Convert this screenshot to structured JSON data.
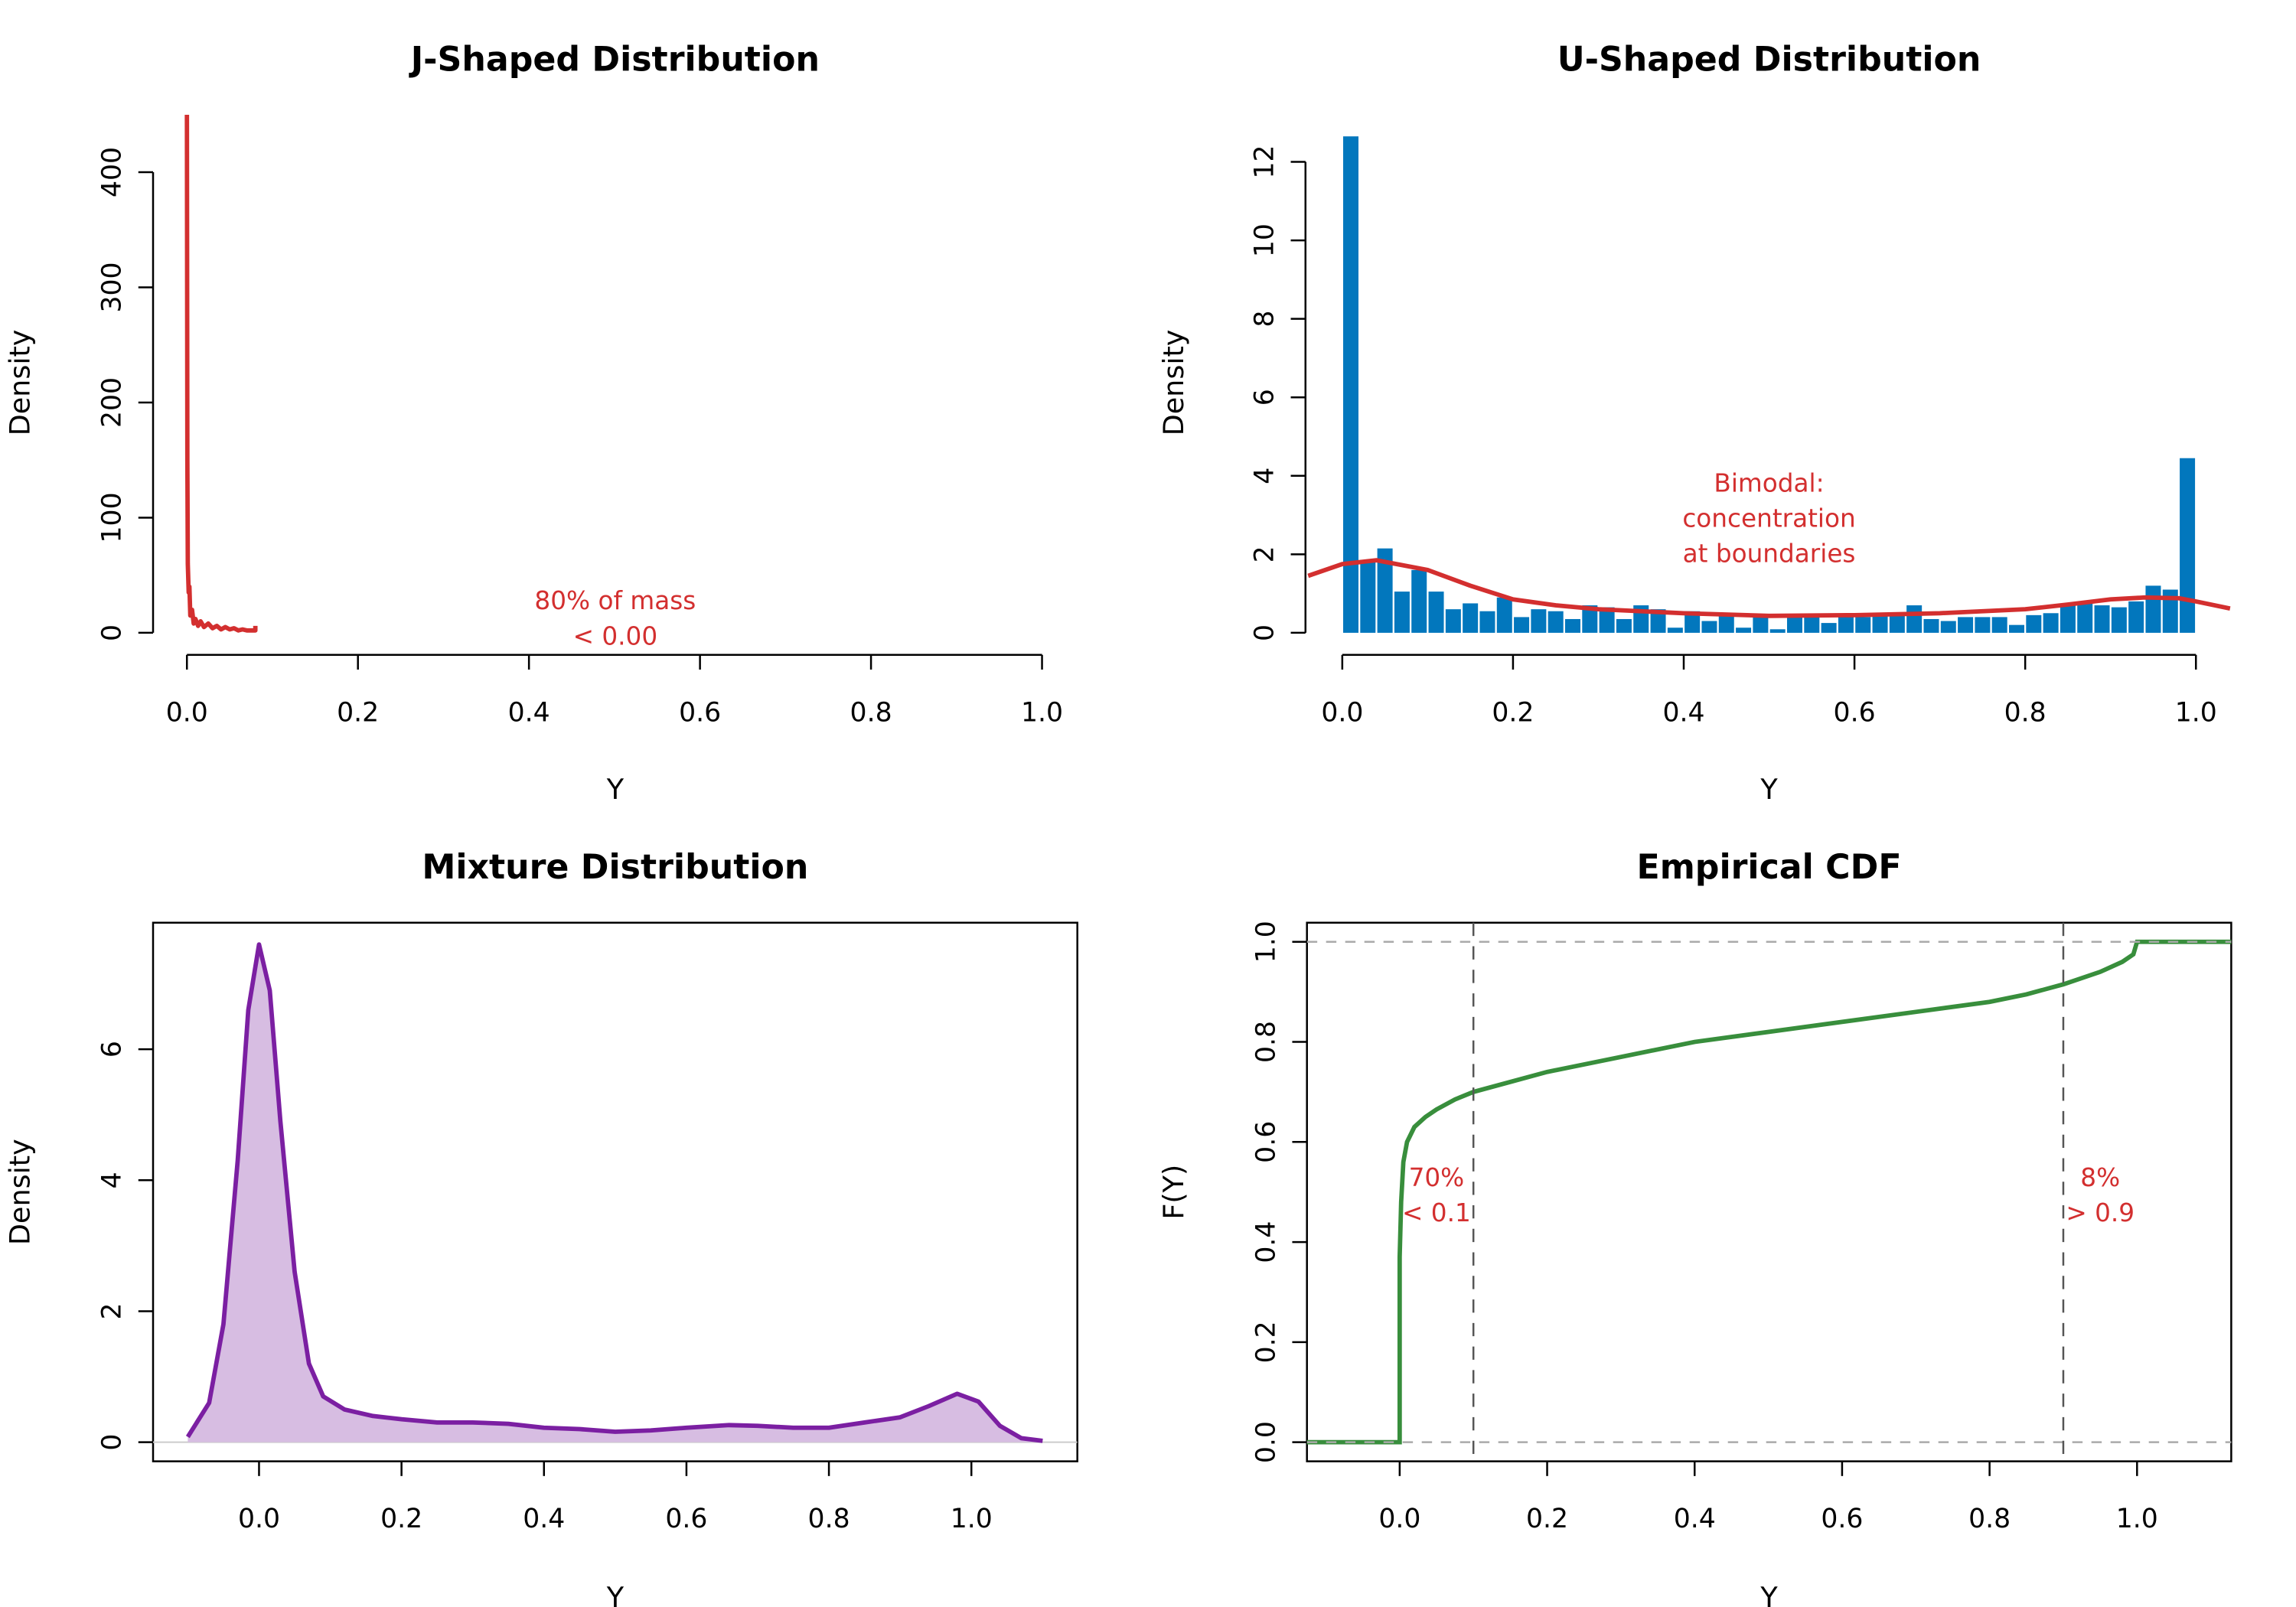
{
  "chart_data": [
    {
      "type": "line",
      "title": "J-Shaped Distribution",
      "xlabel": "Y",
      "ylabel": "Density",
      "xlim": [
        0,
        1
      ],
      "ylim": [
        0,
        450
      ],
      "xticks": [
        "0.0",
        "0.2",
        "0.4",
        "0.6",
        "0.8",
        "1.0"
      ],
      "yticks": [
        "0",
        "100",
        "200",
        "300",
        "400"
      ],
      "grid": false,
      "color": "#d32f2f",
      "series": [
        {
          "x": [
            0,
            0.0005,
            0.001,
            0.002,
            0.003,
            0.004,
            0.006,
            0.008,
            0.01,
            0.013,
            0.016,
            0.02,
            0.025,
            0.03,
            0.035,
            0.04,
            0.045,
            0.05,
            0.055,
            0.06,
            0.065,
            0.07,
            0.075,
            0.08,
            0.08
          ],
          "y": [
            450,
            150,
            60,
            35,
            40,
            15,
            20,
            8,
            12,
            6,
            10,
            5,
            8,
            4,
            6,
            3,
            5,
            3,
            4,
            2,
            3,
            2,
            2,
            2,
            6
          ]
        }
      ],
      "annotations": [
        "80% of mass",
        "< 0.00"
      ]
    },
    {
      "type": "bar",
      "title": "U-Shaped Distribution",
      "xlabel": "Y",
      "ylabel": "Density",
      "xlim": [
        -0.04,
        1.04
      ],
      "ylim": [
        0,
        12.8
      ],
      "xticks": [
        "0.0",
        "0.2",
        "0.4",
        "0.6",
        "0.8",
        "1.0"
      ],
      "yticks": [
        "0",
        "2",
        "4",
        "6",
        "8",
        "10",
        "12"
      ],
      "grid": false,
      "bar_color": "#0277bd",
      "curve_color": "#d32f2f",
      "bin_width": 0.02,
      "bin_start": 0,
      "values": [
        12.65,
        1.8,
        2.15,
        1.05,
        1.6,
        1.05,
        0.6,
        0.75,
        0.55,
        0.9,
        0.4,
        0.6,
        0.55,
        0.35,
        0.7,
        0.65,
        0.35,
        0.7,
        0.6,
        0.13,
        0.55,
        0.3,
        0.45,
        0.13,
        0.4,
        0.09,
        0.4,
        0.4,
        0.25,
        0.4,
        0.4,
        0.45,
        0.45,
        0.7,
        0.35,
        0.3,
        0.4,
        0.4,
        0.4,
        0.2,
        0.45,
        0.5,
        0.75,
        0.75,
        0.7,
        0.65,
        0.8,
        1.2,
        1.1,
        4.45
      ],
      "density_curve": {
        "x": [
          -0.04,
          0,
          0.04,
          0.1,
          0.15,
          0.2,
          0.25,
          0.3,
          0.4,
          0.5,
          0.6,
          0.7,
          0.8,
          0.85,
          0.9,
          0.94,
          0.98,
          1.0,
          1.04
        ],
        "y": [
          1.45,
          1.75,
          1.85,
          1.6,
          1.2,
          0.85,
          0.7,
          0.6,
          0.5,
          0.43,
          0.45,
          0.5,
          0.6,
          0.72,
          0.85,
          0.9,
          0.88,
          0.8,
          0.62
        ]
      },
      "annotations": [
        "Bimodal:",
        "concentration",
        "at boundaries"
      ]
    },
    {
      "type": "area",
      "title": "Mixture Distribution",
      "xlabel": "Y",
      "ylabel": "Density",
      "xlim": [
        -0.15,
        1.15
      ],
      "ylim": [
        0,
        7.8
      ],
      "xticks": [
        "0.0",
        "0.2",
        "0.4",
        "0.6",
        "0.8",
        "1.0"
      ],
      "yticks": [
        "0",
        "2",
        "4",
        "6"
      ],
      "grid": false,
      "line_color": "#7b1fa2",
      "fill_color": "#d7bde2",
      "series": [
        {
          "x": [
            -0.1,
            -0.07,
            -0.05,
            -0.03,
            -0.015,
            0,
            0.015,
            0.03,
            0.05,
            0.07,
            0.09,
            0.12,
            0.16,
            0.2,
            0.25,
            0.3,
            0.35,
            0.4,
            0.45,
            0.5,
            0.55,
            0.6,
            0.66,
            0.7,
            0.75,
            0.8,
            0.85,
            0.9,
            0.94,
            0.98,
            1.01,
            1.04,
            1.07,
            1.1
          ],
          "y": [
            0.08,
            0.6,
            1.8,
            4.3,
            6.6,
            7.6,
            6.9,
            4.9,
            2.6,
            1.2,
            0.7,
            0.5,
            0.4,
            0.35,
            0.3,
            0.3,
            0.28,
            0.22,
            0.2,
            0.16,
            0.18,
            0.22,
            0.26,
            0.25,
            0.22,
            0.22,
            0.3,
            0.38,
            0.55,
            0.74,
            0.62,
            0.25,
            0.06,
            0.02
          ]
        }
      ]
    },
    {
      "type": "line",
      "title": "Empirical CDF",
      "xlabel": "Y",
      "ylabel": "F(Y)",
      "xlim": [
        -0.13,
        1.13
      ],
      "ylim": [
        0,
        1
      ],
      "xticks": [
        "0.0",
        "0.2",
        "0.4",
        "0.6",
        "0.8",
        "1.0"
      ],
      "yticks": [
        "0.0",
        "0.2",
        "0.4",
        "0.6",
        "0.8",
        "1.0"
      ],
      "grid": false,
      "line_color": "#388e3c",
      "reference_lines": {
        "horizontal": [
          0,
          1
        ],
        "vertical": [
          0.1,
          0.9
        ]
      },
      "series": [
        {
          "x": [
            -0.13,
            0,
            0,
            0.002,
            0.005,
            0.01,
            0.02,
            0.035,
            0.05,
            0.075,
            0.1,
            0.15,
            0.2,
            0.3,
            0.4,
            0.5,
            0.6,
            0.7,
            0.8,
            0.85,
            0.9,
            0.95,
            0.98,
            0.995,
            1.0,
            1.13
          ],
          "y": [
            0,
            0,
            0.37,
            0.48,
            0.56,
            0.6,
            0.63,
            0.65,
            0.665,
            0.685,
            0.7,
            0.72,
            0.74,
            0.77,
            0.8,
            0.82,
            0.84,
            0.86,
            0.88,
            0.895,
            0.915,
            0.94,
            0.96,
            0.975,
            1.0,
            1.0
          ]
        }
      ],
      "annotations": [
        [
          "70%",
          "< 0.1"
        ],
        [
          "8%",
          "> 0.9"
        ]
      ]
    }
  ]
}
